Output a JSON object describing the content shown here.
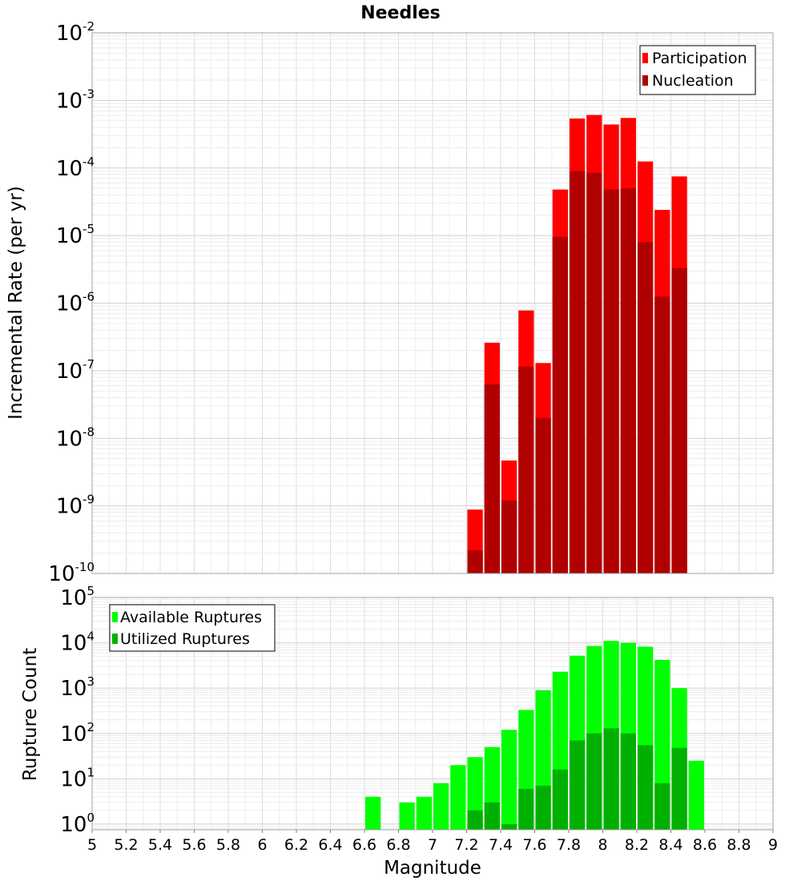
{
  "chart_data": [
    {
      "type": "bar",
      "title": "Needles",
      "ylabel": "Incremental Rate (per yr)",
      "xlabel": "",
      "y_scale": "log",
      "xlim": [
        5,
        9
      ],
      "ylim": [
        1e-10,
        0.01
      ],
      "y_tick_exponents": [
        -10,
        -9,
        -8,
        -7,
        -6,
        -5,
        -4,
        -3,
        -2
      ],
      "grid": true,
      "legend_position": "top-right",
      "bar_width": 0.1,
      "overlay": true,
      "x": [
        7.25,
        7.35,
        7.45,
        7.55,
        7.65,
        7.75,
        7.85,
        7.95,
        8.05,
        8.15,
        8.25,
        8.35,
        8.45
      ],
      "series": [
        {
          "name": "Participation",
          "color": "#ff0000",
          "values": [
            8.8e-10,
            2.6e-07,
            4.7e-09,
            7.8e-07,
            1.3e-07,
            4.8e-05,
            0.00054,
            0.00061,
            0.00044,
            0.00055,
            0.000125,
            2.4e-05,
            7.5e-05
          ]
        },
        {
          "name": "Nucleation",
          "color": "#b00000",
          "values": [
            2.2e-10,
            6.3e-08,
            1.2e-09,
            1.15e-07,
            2e-08,
            9.5e-06,
            9e-05,
            8.5e-05,
            4.8e-05,
            5e-05,
            8e-06,
            1.25e-06,
            3.3e-06
          ]
        }
      ]
    },
    {
      "type": "bar",
      "title": "",
      "ylabel": "Rupture Count",
      "xlabel": "Magnitude",
      "y_scale": "log",
      "xlim": [
        5,
        9
      ],
      "ylim": [
        0.75,
        100000.0
      ],
      "y_tick_exponents": [
        0,
        1,
        2,
        3,
        4,
        5
      ],
      "x_ticks": [
        "5",
        "5.2",
        "5.4",
        "5.6",
        "5.8",
        "6",
        "6.2",
        "6.4",
        "6.6",
        "6.8",
        "7",
        "7.2",
        "7.4",
        "7.6",
        "7.8",
        "8",
        "8.2",
        "8.4",
        "8.6",
        "8.8",
        "9"
      ],
      "grid": true,
      "legend_position": "top-left",
      "bar_width": 0.1,
      "overlay": true,
      "series": [
        {
          "name": "Available Ruptures",
          "color": "#00ff00",
          "x": [
            6.65,
            6.85,
            6.95,
            7.05,
            7.15,
            7.25,
            7.35,
            7.45,
            7.55,
            7.65,
            7.75,
            7.85,
            7.95,
            8.05,
            8.15,
            8.25,
            8.35,
            8.45,
            8.55
          ],
          "values": [
            4,
            3,
            4,
            8,
            20,
            30,
            50,
            120,
            330,
            900,
            2300,
            5200,
            8500,
            11000,
            10000,
            8200,
            4200,
            1000,
            25
          ]
        },
        {
          "name": "Utilized Ruptures",
          "color": "#00b000",
          "x": [
            7.25,
            7.35,
            7.45,
            7.55,
            7.65,
            7.75,
            7.85,
            7.95,
            8.05,
            8.15,
            8.25,
            8.35,
            8.45
          ],
          "values": [
            2,
            3,
            1,
            6,
            7,
            16,
            70,
            100,
            130,
            100,
            55,
            8,
            48
          ]
        }
      ]
    }
  ]
}
